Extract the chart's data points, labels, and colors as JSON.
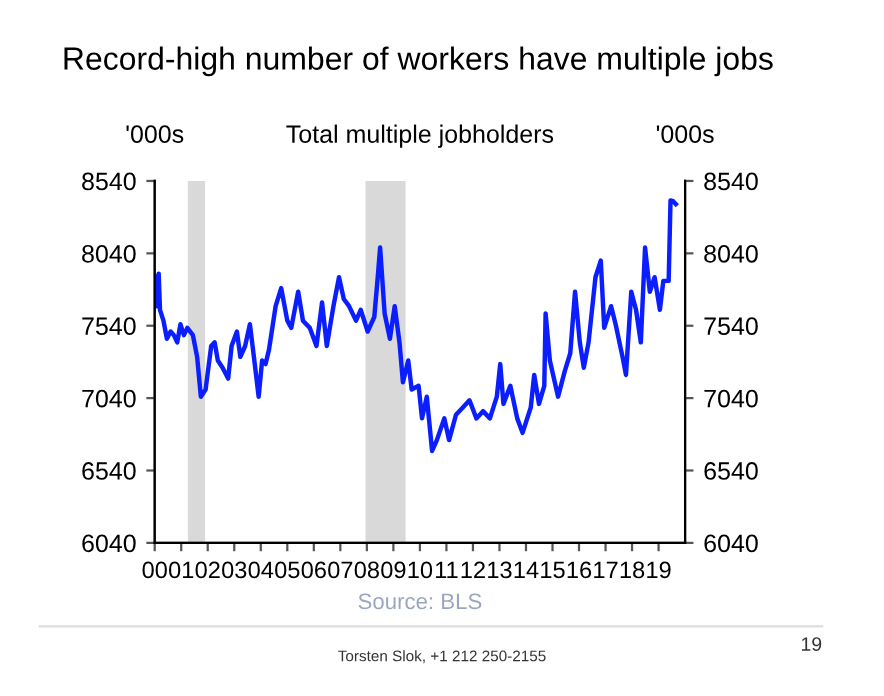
{
  "chart_data": {
    "type": "line",
    "title": "Record-high number of workers have multiple jobs",
    "subtitle": "Total multiple jobholders",
    "ylabel": "'000s",
    "y2label": "'000s",
    "annotations": [
      "Source: BLS",
      "Torsten Slok, +1 212 250-2155",
      "19"
    ],
    "xlim": [
      2000,
      2020
    ],
    "xticks": [
      {
        "value": 2000,
        "label": "00"
      },
      {
        "value": 2001,
        "label": "01"
      },
      {
        "value": 2002,
        "label": "02"
      },
      {
        "value": 2003,
        "label": "03"
      },
      {
        "value": 2004,
        "label": "04"
      },
      {
        "value": 2005,
        "label": "05"
      },
      {
        "value": 2006,
        "label": "06"
      },
      {
        "value": 2007,
        "label": "07"
      },
      {
        "value": 2008,
        "label": "08"
      },
      {
        "value": 2009,
        "label": "09"
      },
      {
        "value": 2010,
        "label": "10"
      },
      {
        "value": 2011,
        "label": "11"
      },
      {
        "value": 2012,
        "label": "12"
      },
      {
        "value": 2013,
        "label": "13"
      },
      {
        "value": 2014,
        "label": "14"
      },
      {
        "value": 2015,
        "label": "15"
      },
      {
        "value": 2016,
        "label": "16"
      },
      {
        "value": 2017,
        "label": "17"
      },
      {
        "value": 2018,
        "label": "18"
      },
      {
        "value": 2019,
        "label": "19"
      }
    ],
    "ylim": [
      6040,
      8540
    ],
    "yticks": [
      6040,
      6540,
      7040,
      7540,
      8040,
      8540
    ],
    "y2lim": [
      6040,
      8540
    ],
    "y2ticks": [
      6040,
      6540,
      7040,
      7540,
      8040,
      8540
    ],
    "grid": false,
    "legend": false,
    "marker": "none",
    "line_style": "solid",
    "bands": [
      {
        "axis": "x",
        "from": 2001.25,
        "to": 2001.9,
        "color": "#d9d9d9"
      },
      {
        "axis": "x",
        "from": 2007.95,
        "to": 2009.46,
        "color": "#d9d9d9"
      }
    ],
    "series": [
      {
        "color": "#0a1eff",
        "x": [
          2000.0,
          2000.08,
          2000.15,
          2000.2,
          2000.33,
          2000.46,
          2000.6,
          2000.72,
          2000.85,
          2000.97,
          2001.1,
          2001.23,
          2001.44,
          2001.6,
          2001.74,
          2001.92,
          2002.13,
          2002.26,
          2002.38,
          2002.56,
          2002.77,
          2002.9,
          2003.1,
          2003.23,
          2003.41,
          2003.59,
          2003.74,
          2003.92,
          2004.05,
          2004.18,
          2004.31,
          2004.56,
          2004.77,
          2005.0,
          2005.15,
          2005.41,
          2005.59,
          2005.85,
          2006.1,
          2006.31,
          2006.49,
          2006.74,
          2006.95,
          2007.13,
          2007.33,
          2007.59,
          2007.77,
          2008.03,
          2008.28,
          2008.41,
          2008.5,
          2008.67,
          2008.87,
          2009.05,
          2009.23,
          2009.36,
          2009.56,
          2009.69,
          2009.95,
          2010.08,
          2010.26,
          2010.46,
          2010.64,
          2010.92,
          2011.1,
          2011.36,
          2011.62,
          2011.87,
          2012.13,
          2012.38,
          2012.64,
          2012.9,
          2013.03,
          2013.15,
          2013.41,
          2013.67,
          2013.87,
          2014.18,
          2014.31,
          2014.49,
          2014.69,
          2014.74,
          2014.9,
          2015.21,
          2015.46,
          2015.67,
          2015.85,
          2016.03,
          2016.18,
          2016.36,
          2016.62,
          2016.82,
          2016.95,
          2017.21,
          2017.38,
          2017.64,
          2017.77,
          2017.97,
          2018.15,
          2018.33,
          2018.49,
          2018.67,
          2018.85,
          2019.05,
          2019.18,
          2019.38,
          2019.45,
          2019.55,
          2019.65
        ],
        "values": [
          7880,
          7675,
          7900,
          7650,
          7575,
          7450,
          7500,
          7475,
          7425,
          7550,
          7475,
          7525,
          7475,
          7325,
          7050,
          7100,
          7400,
          7425,
          7300,
          7250,
          7175,
          7400,
          7500,
          7325,
          7400,
          7550,
          7325,
          7050,
          7300,
          7275,
          7375,
          7675,
          7800,
          7575,
          7525,
          7775,
          7575,
          7525,
          7400,
          7700,
          7400,
          7675,
          7875,
          7725,
          7675,
          7575,
          7650,
          7500,
          7600,
          7875,
          8080,
          7625,
          7450,
          7675,
          7425,
          7150,
          7300,
          7100,
          7125,
          6900,
          7050,
          6675,
          6750,
          6900,
          6750,
          6925,
          6975,
          7025,
          6900,
          6950,
          6900,
          7050,
          7275,
          7000,
          7125,
          6900,
          6800,
          6975,
          7200,
          7000,
          7125,
          7625,
          7300,
          7050,
          7225,
          7350,
          7775,
          7425,
          7250,
          7425,
          7875,
          7990,
          7525,
          7675,
          7550,
          7325,
          7200,
          7775,
          7650,
          7425,
          8080,
          7775,
          7875,
          7650,
          7850,
          7850,
          8405,
          8400,
          8380
        ]
      }
    ]
  }
}
